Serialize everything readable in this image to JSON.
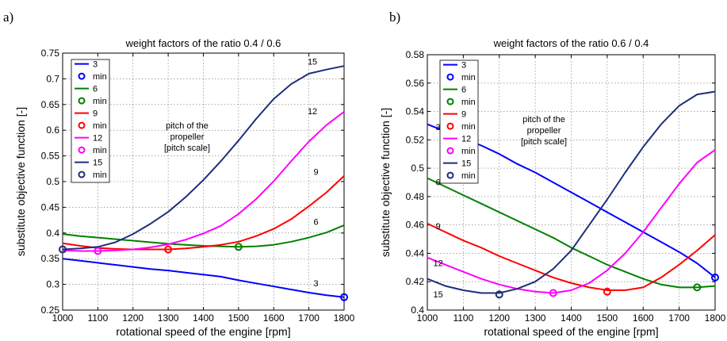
{
  "chart_data": [
    {
      "type": "line",
      "panel_label": "a)",
      "title": "weight factors of the ratio  0.4 / 0.6",
      "xlabel": "rotational speed of the engine  [rpm]",
      "ylabel": "substitute objective function  [-]",
      "xlim": [
        1000,
        1800
      ],
      "ylim": [
        0.25,
        0.75
      ],
      "xticks": [
        "1000",
        "1100",
        "1200",
        "1300",
        "1400",
        "1500",
        "1600",
        "1700",
        "1800"
      ],
      "yticks": [
        "0.25",
        "0.3",
        "0.35",
        "0.4",
        "0.45",
        "0.5",
        "0.55",
        "0.6",
        "0.65",
        "0.7",
        "0.75"
      ],
      "grid": true,
      "legend_position": "top-left",
      "note": [
        "pitch of the",
        "propeller",
        "[pitch scale]"
      ],
      "x": [
        1000,
        1050,
        1100,
        1150,
        1200,
        1250,
        1300,
        1350,
        1400,
        1450,
        1500,
        1550,
        1600,
        1650,
        1700,
        1750,
        1800
      ],
      "series": [
        {
          "name": "3",
          "color": "#0000ff",
          "values": [
            0.35,
            0.346,
            0.342,
            0.338,
            0.334,
            0.33,
            0.327,
            0.323,
            0.319,
            0.315,
            0.308,
            0.302,
            0.296,
            0.29,
            0.284,
            0.279,
            0.275
          ],
          "min": {
            "x": 1800,
            "y": 0.275
          },
          "line_label": {
            "text": "3",
            "x": 1720,
            "y": 0.296
          }
        },
        {
          "name": "6",
          "color": "#008000",
          "values": [
            0.398,
            0.394,
            0.391,
            0.388,
            0.385,
            0.382,
            0.379,
            0.377,
            0.375,
            0.374,
            0.373,
            0.374,
            0.377,
            0.383,
            0.391,
            0.401,
            0.415
          ],
          "min": {
            "x": 1500,
            "y": 0.373
          },
          "line_label": {
            "text": "6",
            "x": 1720,
            "y": 0.416
          }
        },
        {
          "name": "9",
          "color": "#ff0000",
          "values": [
            0.38,
            0.375,
            0.371,
            0.369,
            0.368,
            0.368,
            0.368,
            0.37,
            0.373,
            0.377,
            0.383,
            0.394,
            0.408,
            0.427,
            0.452,
            0.479,
            0.511
          ],
          "min": {
            "x": 1300,
            "y": 0.368
          },
          "line_label": {
            "text": "9",
            "x": 1720,
            "y": 0.513
          }
        },
        {
          "name": "12",
          "color": "#ff00ff",
          "values": [
            0.366,
            0.365,
            0.365,
            0.366,
            0.368,
            0.372,
            0.378,
            0.387,
            0.399,
            0.414,
            0.437,
            0.466,
            0.501,
            0.54,
            0.578,
            0.61,
            0.636
          ],
          "min": {
            "x": 1100,
            "y": 0.365
          },
          "line_label": {
            "text": "12",
            "x": 1710,
            "y": 0.631
          }
        },
        {
          "name": "15",
          "color": "#1f2e7a",
          "values": [
            0.368,
            0.37,
            0.373,
            0.382,
            0.398,
            0.418,
            0.441,
            0.47,
            0.503,
            0.54,
            0.58,
            0.622,
            0.661,
            0.69,
            0.71,
            0.718,
            0.725
          ],
          "min": {
            "x": 1000,
            "y": 0.368
          },
          "line_label": {
            "text": "15",
            "x": 1710,
            "y": 0.728
          }
        }
      ]
    },
    {
      "type": "line",
      "panel_label": "b)",
      "title": "weight factors of the ratio  0.6 / 0.4",
      "xlabel": "rotational speed of the engine  [rpm]",
      "ylabel": "substitute objective function  [-]",
      "xlim": [
        1000,
        1800
      ],
      "ylim": [
        0.4,
        0.58
      ],
      "xticks": [
        "1000",
        "1100",
        "1200",
        "1300",
        "1400",
        "1500",
        "1600",
        "1700",
        "1800"
      ],
      "yticks": [
        "0.4",
        "0.42",
        "0.44",
        "0.46",
        "0.48",
        "0.5",
        "0.52",
        "0.54",
        "0.56",
        "0.58"
      ],
      "grid": true,
      "legend_position": "top-left",
      "note": [
        "pitch of the",
        "propeller",
        "[pitch scale]"
      ],
      "x": [
        1000,
        1050,
        1100,
        1150,
        1200,
        1250,
        1300,
        1350,
        1400,
        1450,
        1500,
        1550,
        1600,
        1650,
        1700,
        1750,
        1800
      ],
      "series": [
        {
          "name": "3",
          "color": "#0000ff",
          "values": [
            0.531,
            0.526,
            0.521,
            0.516,
            0.51,
            0.503,
            0.497,
            0.49,
            0.483,
            0.476,
            0.469,
            0.462,
            0.455,
            0.448,
            0.441,
            0.433,
            0.423
          ],
          "min": {
            "x": 1800,
            "y": 0.423
          },
          "line_label": {
            "text": "3",
            "x": 1030,
            "y": 0.527
          }
        },
        {
          "name": "6",
          "color": "#008000",
          "values": [
            0.493,
            0.487,
            0.481,
            0.475,
            0.469,
            0.463,
            0.457,
            0.451,
            0.444,
            0.438,
            0.432,
            0.427,
            0.422,
            0.418,
            0.416,
            0.416,
            0.417
          ],
          "min": {
            "x": 1750,
            "y": 0.416
          },
          "line_label": {
            "text": "6",
            "x": 1030,
            "y": 0.488
          }
        },
        {
          "name": "9",
          "color": "#ff0000",
          "values": [
            0.461,
            0.455,
            0.449,
            0.444,
            0.438,
            0.433,
            0.428,
            0.423,
            0.419,
            0.416,
            0.414,
            0.414,
            0.416,
            0.423,
            0.432,
            0.442,
            0.453
          ],
          "min": {
            "x": 1500,
            "y": 0.413
          },
          "line_label": {
            "text": "9",
            "x": 1030,
            "y": 0.457
          }
        },
        {
          "name": "12",
          "color": "#ff00ff",
          "values": [
            0.437,
            0.432,
            0.427,
            0.422,
            0.418,
            0.415,
            0.413,
            0.412,
            0.414,
            0.419,
            0.428,
            0.44,
            0.455,
            0.472,
            0.489,
            0.504,
            0.513
          ],
          "min": {
            "x": 1350,
            "y": 0.412
          },
          "line_label": {
            "text": "12",
            "x": 1030,
            "y": 0.431
          }
        },
        {
          "name": "15",
          "color": "#1f2e7a",
          "values": [
            0.422,
            0.417,
            0.414,
            0.412,
            0.412,
            0.415,
            0.42,
            0.429,
            0.442,
            0.46,
            0.478,
            0.497,
            0.515,
            0.531,
            0.544,
            0.552,
            0.554
          ],
          "min": {
            "x": 1200,
            "y": 0.411
          },
          "line_label": {
            "text": "15",
            "x": 1030,
            "y": 0.409
          }
        }
      ]
    }
  ]
}
